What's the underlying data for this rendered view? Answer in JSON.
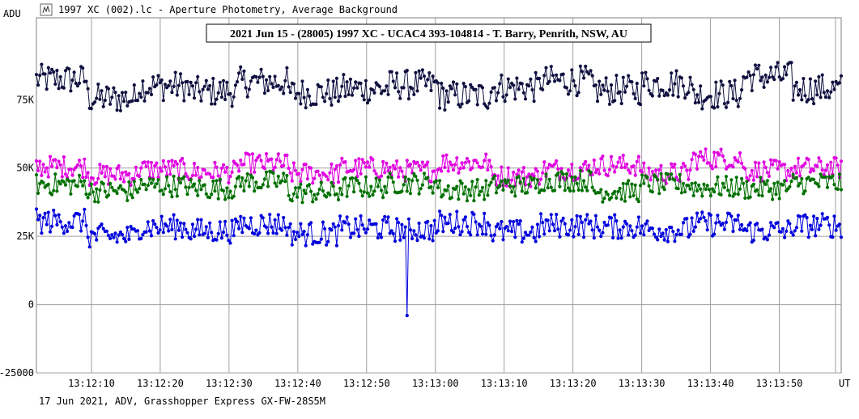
{
  "window": {
    "header_text": "1997 XC (002).lc - Aperture Photometry, Average Background",
    "icon": "lightcurve-icon",
    "footer_text": "17 Jun 2021, ADV, Grasshopper Express GX-FW-28S5M"
  },
  "chart_data": {
    "type": "line",
    "title": "2021 Jun 15 - (28005) 1997 XC - UCAC4 393-104814 - T. Barry, Penrith, NSW, AU",
    "ylabel": "ADU",
    "xlabel": "UT",
    "ylim": [
      -25000,
      105000
    ],
    "xlim": [
      "13:12:02",
      "13:13:59"
    ],
    "y_ticks": [
      "75K",
      "50K",
      "25K",
      "0",
      "-25000"
    ],
    "y_tick_values": [
      75000,
      50000,
      25000,
      0,
      -25000
    ],
    "x_ticks": [
      "13:12:10",
      "13:12:20",
      "13:12:30",
      "13:12:40",
      "13:12:50",
      "13:13:00",
      "13:13:10",
      "13:13:20",
      "13:13:30",
      "13:13:40",
      "13:13:50"
    ],
    "grid": true,
    "series": [
      {
        "color": "#101040",
        "mean": 79000,
        "spread": 5500,
        "approx_values": [
          86000,
          72000,
          81000,
          77000,
          84000,
          76000,
          79000,
          82000,
          74000,
          80000,
          85000,
          78000,
          83000,
          75000,
          88000,
          79000
        ]
      },
      {
        "color": "#e000e0",
        "mean": 49000,
        "spread": 4000,
        "approx_values": [
          52000,
          46000,
          50000,
          48000,
          54000,
          47000,
          51000,
          49000,
          55000,
          45000,
          50000,
          53000,
          47000,
          58000,
          49000,
          51000
        ]
      },
      {
        "color": "#007000",
        "mean": 43000,
        "spread": 4000,
        "approx_values": [
          45000,
          40000,
          44000,
          42000,
          47000,
          39000,
          43000,
          46000,
          41000,
          44000,
          48000,
          40000,
          45000,
          43000,
          42000,
          46000
        ]
      },
      {
        "color": "#0000dd",
        "mean": 28000,
        "spread": 4500,
        "approx_values": [
          33000,
          22000,
          29000,
          26000,
          31000,
          24000,
          28000,
          27000,
          32000,
          25000,
          30000,
          29000,
          27000,
          31000,
          26000,
          30000
        ],
        "dip": {
          "x": "13:12:55.9",
          "value": -4000
        }
      }
    ]
  }
}
